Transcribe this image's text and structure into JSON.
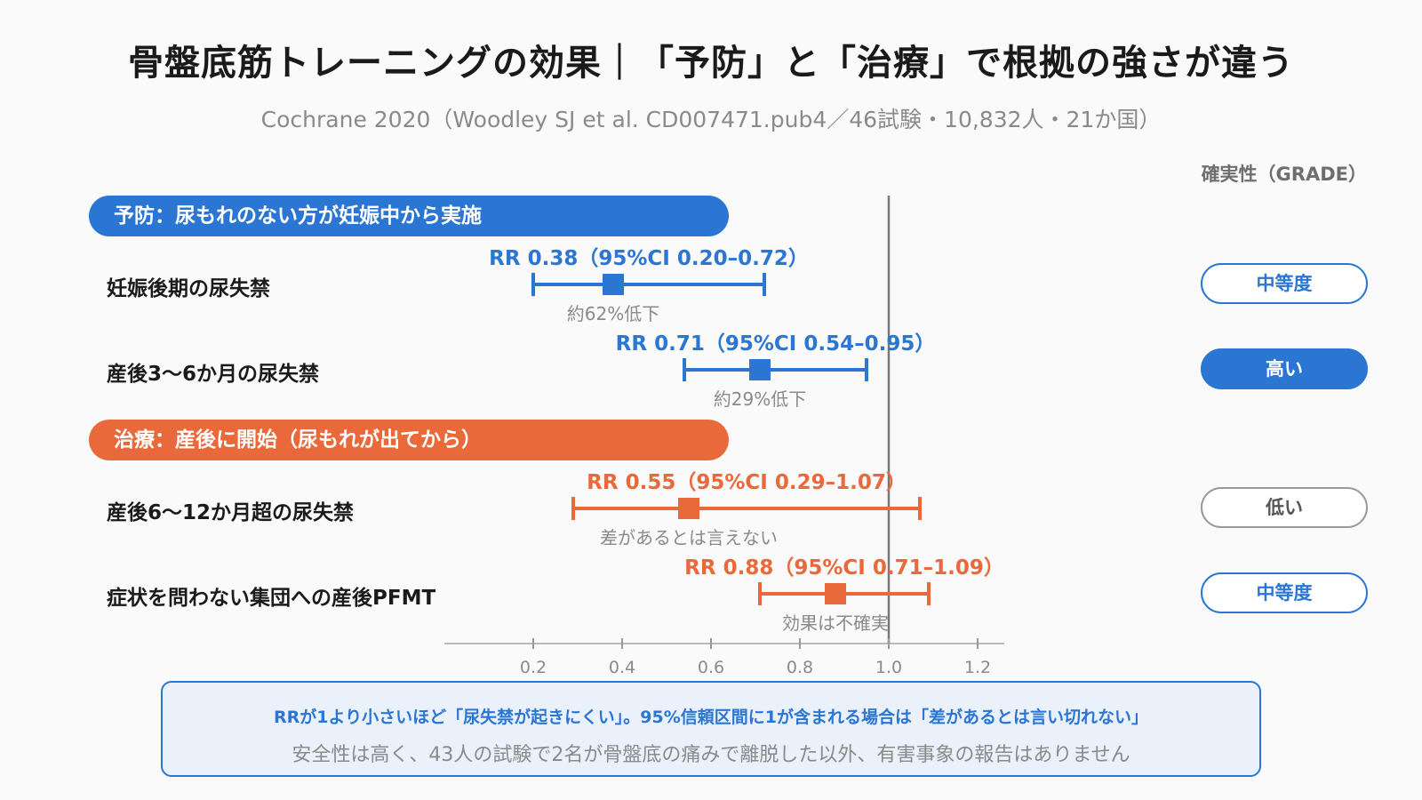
{
  "title": "骨盤底筋トレーニングの効果｜「予防」と「治療」で根拠の強さが違う",
  "subtitle": "Cochrane 2020（Woodley SJ et al. CD007471.pub4／46試験・10,832人・21か国）",
  "grade_header": "確実性（GRADE）",
  "sections": [
    {
      "label": "予防：尿もれのない方が妊娠中から実施",
      "color": "#2b76d2"
    },
    {
      "label": "治療：産後に開始（尿もれが出てから）",
      "color": "#e9693a"
    }
  ],
  "rows": [
    {
      "label": "妊娠後期の尿失禁",
      "grade": "中等度"
    },
    {
      "label": "産後3〜6か月の尿失禁",
      "grade": "高い"
    },
    {
      "label": "産後6〜12か月超の尿失禁",
      "grade": "低い"
    },
    {
      "label": "症状を問わない集団への産後PFMT",
      "grade": "中等度"
    }
  ],
  "chart_data": {
    "type": "forest",
    "x_ticks": [
      0.2,
      0.4,
      0.6,
      0.8,
      1.0,
      1.2
    ],
    "x_tick_labels": [
      "0.2",
      "0.4",
      "0.6",
      "0.8",
      "1.0",
      "1.2"
    ],
    "xlim": [
      0,
      1.26
    ],
    "reference_line": 1.0,
    "series": [
      {
        "row": "妊娠後期の尿失禁",
        "group": "予防",
        "rr": 0.38,
        "lo": 0.2,
        "hi": 0.72,
        "label": "RR 0.38（95%CI 0.20–0.72）",
        "note": "約62%低下",
        "color": "#2b76d2"
      },
      {
        "row": "産後3〜6か月の尿失禁",
        "group": "予防",
        "rr": 0.71,
        "lo": 0.54,
        "hi": 0.95,
        "label": "RR 0.71（95%CI 0.54–0.95）",
        "note": "約29%低下",
        "color": "#2b76d2"
      },
      {
        "row": "産後6〜12か月超の尿失禁",
        "group": "治療",
        "rr": 0.55,
        "lo": 0.29,
        "hi": 1.07,
        "label": "RR 0.55（95%CI 0.29–1.07）",
        "note": "差があるとは言えない",
        "color": "#e9693a"
      },
      {
        "row": "症状を問わない集団への産後PFMT",
        "group": "治療",
        "rr": 0.88,
        "lo": 0.71,
        "hi": 1.09,
        "label": "RR 0.88（95%CI 0.71–1.09）",
        "note": "効果は不確実",
        "color": "#e9693a"
      }
    ]
  },
  "note": {
    "line1": "RRが1より小さいほど「尿失禁が起きにくい」。95%信頼区間に1が含まれる場合は「差があるとは言い切れない」",
    "line2": "安全性は高く、43人の試験で2名が骨盤底の痛みで離脱した以外、有害事象の報告はありません"
  }
}
